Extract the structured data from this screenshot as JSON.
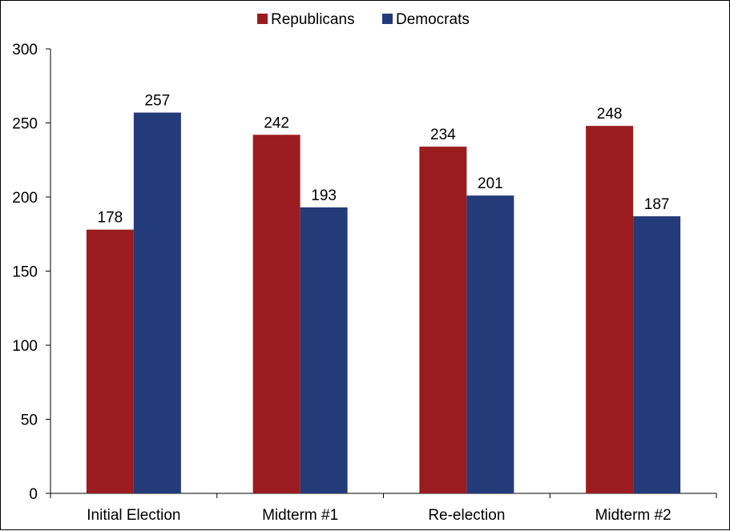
{
  "chart_data": {
    "type": "bar",
    "title": "",
    "xlabel": "",
    "ylabel": "",
    "categories": [
      "Initial Election",
      "Midterm #1",
      "Re-election",
      "Midterm #2"
    ],
    "series": [
      {
        "name": "Republicans",
        "color": "#9B1C1F",
        "values": [
          178,
          242,
          234,
          248
        ]
      },
      {
        "name": "Democrats",
        "color": "#243B7A",
        "values": [
          257,
          193,
          201,
          187
        ]
      }
    ],
    "ylim": [
      0,
      300
    ],
    "yticks": [
      0,
      50,
      100,
      150,
      200,
      250,
      300
    ],
    "grid": false,
    "legend_position": "top-center",
    "data_labels": true
  }
}
